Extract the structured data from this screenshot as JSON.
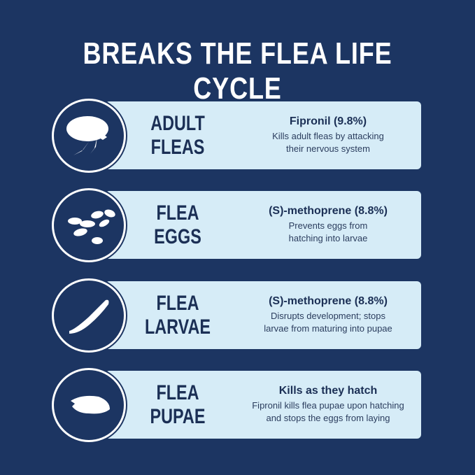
{
  "title": "BREAKS THE FLEA LIFE CYCLE",
  "colors": {
    "background": "#1c3562",
    "card": "#d6ecf7",
    "text": "#1b2f55"
  },
  "stages": [
    {
      "icon": "adult-flea-icon",
      "line1": "ADULT",
      "line2": "FLEAS",
      "heading": "Fipronil (9.8%)",
      "desc1": "Kills adult fleas by attacking",
      "desc2": "their nervous system"
    },
    {
      "icon": "flea-eggs-icon",
      "line1": "FLEA",
      "line2": "EGGS",
      "heading": "(S)-methoprene (8.8%)",
      "desc1": "Prevents eggs from",
      "desc2": "hatching into larvae"
    },
    {
      "icon": "flea-larva-icon",
      "line1": "FLEA",
      "line2": "LARVAE",
      "heading": "(S)-methoprene (8.8%)",
      "desc1": "Disrupts development; stops",
      "desc2": "larvae from maturing into pupae"
    },
    {
      "icon": "flea-pupa-icon",
      "line1": "FLEA",
      "line2": "PUPAE",
      "heading": "Kills as they hatch",
      "desc1": "Fipronil kills flea pupae upon hatching",
      "desc2": "and stops the eggs from laying"
    }
  ]
}
